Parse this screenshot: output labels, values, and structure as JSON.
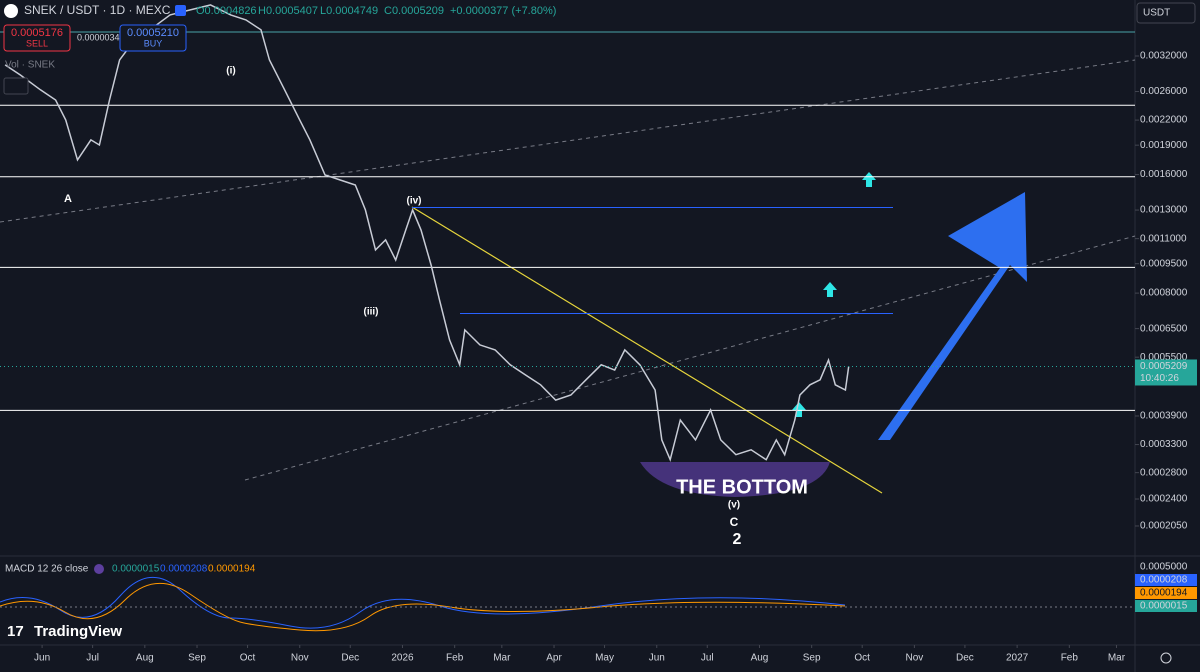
{
  "chart_data": {
    "type": "line",
    "title": "SNEK / USDT · 1D · MEXC",
    "ohlc": [
      "O0.0004826",
      "H0.0005407",
      "L0.0004749",
      "C0.0005209",
      "+0.0000377 (+7.80%)"
    ],
    "color": "#c8ccd6",
    "log": true,
    "grid": false,
    "x": [
      -22,
      -13,
      -1,
      8,
      14,
      21,
      29,
      34,
      40,
      46,
      55,
      64,
      76,
      88,
      100,
      112,
      121,
      130,
      135,
      144,
      153,
      159,
      168,
      177,
      186,
      192,
      198,
      204,
      210,
      216,
      220,
      225,
      231,
      236,
      242,
      248,
      251,
      260,
      269,
      278,
      287,
      296,
      305,
      314,
      323,
      332,
      340,
      346,
      355,
      364,
      368,
      373,
      379,
      388,
      397,
      403,
      412,
      421,
      430,
      436,
      441,
      447,
      450,
      456,
      462,
      467,
      471,
      477,
      479
    ],
    "values": [
      0.003038,
      0.002866,
      0.002626,
      0.002474,
      0.002202,
      0.001743,
      0.001959,
      0.001902,
      0.002474,
      0.003128,
      0.003516,
      0.003729,
      0.004069,
      0.00419,
      0.004315,
      0.004069,
      0.003952,
      0.003729,
      0.003128,
      0.002626,
      0.002202,
      0.001959,
      0.001597,
      0.00155,
      0.001505,
      0.001301,
      0.00103,
      0.001092,
      0.000971,
      0.001158,
      0.001301,
      0.001158,
      0.000943,
      0.000769,
      0.000608,
      0.000526,
      0.000645,
      0.000591,
      0.000574,
      0.000526,
      0.000496,
      0.000468,
      0.000428,
      0.000441,
      0.000482,
      0.000526,
      0.00051,
      0.000574,
      0.000526,
      0.000454,
      0.000339,
      0.000302,
      0.000381,
      0.000339,
      0.000404,
      0.000339,
      0.000311,
      0.00032,
      0.000302,
      0.000339,
      0.000311,
      0.000381,
      0.000441,
      0.000468,
      0.000482,
      0.000541,
      0.000468,
      0.000454,
      0.0005209
    ],
    "xlim": [
      -25,
      649
    ],
    "ylim": [
      0.000173,
      0.00444
    ],
    "xticks": [
      {
        "value": 0,
        "label": "Jun"
      },
      {
        "value": 30,
        "label": "Jul"
      },
      {
        "value": 61,
        "label": "Aug"
      },
      {
        "value": 92,
        "label": "Sep"
      },
      {
        "value": 122,
        "label": "Oct"
      },
      {
        "value": 153,
        "label": "Nov"
      },
      {
        "value": 183,
        "label": "Dec"
      },
      {
        "value": 214,
        "label": "2026"
      },
      {
        "value": 245,
        "label": "Feb"
      },
      {
        "value": 273,
        "label": "Mar"
      },
      {
        "value": 304,
        "label": "Apr"
      },
      {
        "value": 334,
        "label": "May"
      },
      {
        "value": 365,
        "label": "Jun"
      },
      {
        "value": 395,
        "label": "Jul"
      },
      {
        "value": 426,
        "label": "Aug"
      },
      {
        "value": 457,
        "label": "Sep"
      },
      {
        "value": 487,
        "label": "Oct"
      },
      {
        "value": 518,
        "label": "Nov"
      },
      {
        "value": 548,
        "label": "Dec"
      },
      {
        "value": 579,
        "label": "2027"
      },
      {
        "value": 610,
        "label": "Feb"
      },
      {
        "value": 638,
        "label": "Mar"
      }
    ],
    "yticks": [
      {
        "value": 0.0032,
        "label": "0.0032000"
      },
      {
        "value": 0.0026,
        "label": "0.0026000"
      },
      {
        "value": 0.0022,
        "label": "0.0022000"
      },
      {
        "value": 0.0019,
        "label": "0.0019000"
      },
      {
        "value": 0.0016,
        "label": "0.0016000"
      },
      {
        "value": 0.0013,
        "label": "0.0013000"
      },
      {
        "value": 0.0011,
        "label": "0.0011000"
      },
      {
        "value": 0.00095,
        "label": "0.0009500"
      },
      {
        "value": 0.0008,
        "label": "0.0008000"
      },
      {
        "value": 0.00065,
        "label": "0.0006500"
      },
      {
        "value": 0.00055,
        "label": "0.0005500"
      },
      {
        "value": 0.00039,
        "label": "0.0003900"
      },
      {
        "value": 0.00033,
        "label": "0.0003300"
      },
      {
        "value": 0.00028,
        "label": "0.0002800"
      },
      {
        "value": 0.00024,
        "label": "0.0002400"
      },
      {
        "value": 0.000205,
        "label": "0.0002050"
      }
    ],
    "levels": [
      {
        "value": 0.003683,
        "color": "#4aa3a8"
      },
      {
        "value": 0.0024,
        "color": "#ffffff"
      },
      {
        "value": 0.00158,
        "color": "#ffffff"
      },
      {
        "value": 0.00093,
        "color": "#ffffff"
      },
      {
        "value": 0.000403,
        "color": "#ffffff"
      },
      {
        "value": 0.00132,
        "color": "#2962ff"
      },
      {
        "value": 0.00071,
        "color": "#2962ff"
      }
    ],
    "annotations": [
      "A",
      "(i)",
      "(iii)",
      "(iv)",
      "(v)",
      "C",
      "2",
      "THE BOTTOM"
    ]
  },
  "ui": {
    "sell_price": "0.0005176",
    "sell": "SELL",
    "spread": "0.0000034",
    "buy_price": "0.0005210",
    "buy": "BUY",
    "volume": "Vol · SNEK",
    "currency": "USDT",
    "last_price": "0.0005209",
    "countdown": "10:40:26",
    "macd_title": "MACD 12 26 close",
    "macd_values": [
      "0.0000015",
      "0.0000208",
      "0.0000194"
    ],
    "macd_axis": "0.0005000",
    "brand": "TradingView"
  }
}
